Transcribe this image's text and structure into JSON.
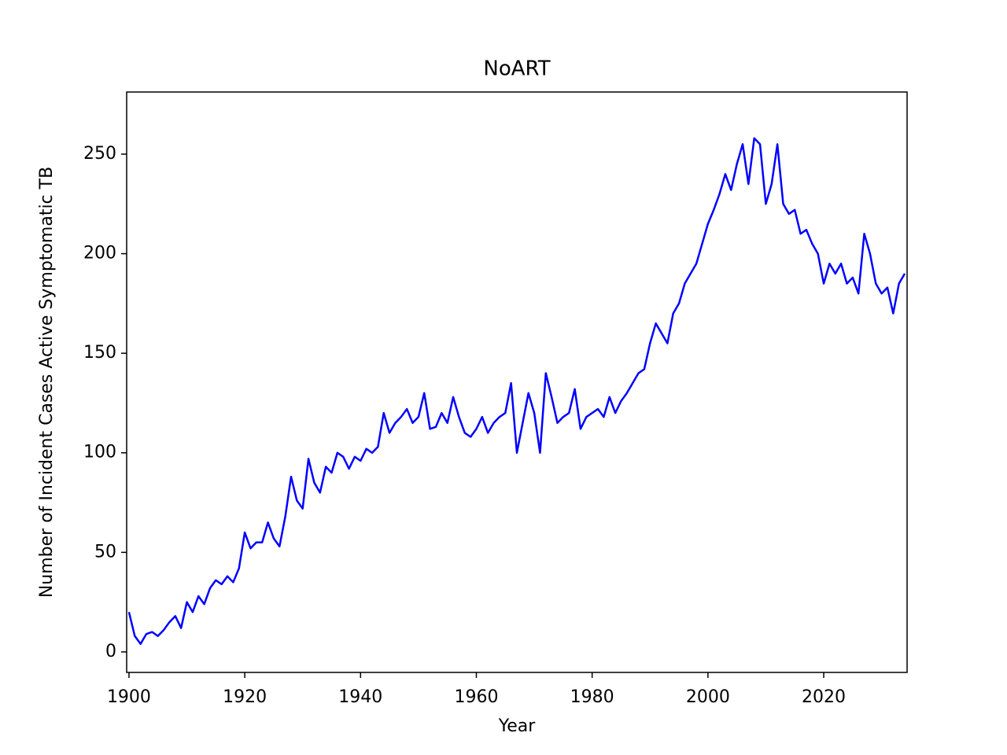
{
  "chart_data": {
    "type": "line",
    "title": "NoART",
    "x_label": "Year",
    "y_label": "Number of Incident Cases Active Symptomatic TB",
    "x": [
      1900,
      1901,
      1902,
      1903,
      1904,
      1905,
      1906,
      1907,
      1908,
      1909,
      1910,
      1911,
      1912,
      1913,
      1914,
      1915,
      1916,
      1917,
      1918,
      1919,
      1920,
      1921,
      1922,
      1923,
      1924,
      1925,
      1926,
      1927,
      1928,
      1929,
      1930,
      1931,
      1932,
      1933,
      1934,
      1935,
      1936,
      1937,
      1938,
      1939,
      1940,
      1941,
      1942,
      1943,
      1944,
      1945,
      1946,
      1947,
      1948,
      1949,
      1950,
      1951,
      1952,
      1953,
      1954,
      1955,
      1956,
      1957,
      1958,
      1959,
      1960,
      1961,
      1962,
      1963,
      1964,
      1965,
      1966,
      1967,
      1968,
      1969,
      1970,
      1971,
      1972,
      1973,
      1974,
      1975,
      1976,
      1977,
      1978,
      1979,
      1980,
      1981,
      1982,
      1983,
      1984,
      1985,
      1986,
      1987,
      1988,
      1989,
      1990,
      1991,
      1992,
      1993,
      1994,
      1995,
      1996,
      1997,
      1998,
      1999,
      2000,
      2001,
      2002,
      2003,
      2004,
      2005,
      2006,
      2007,
      2008,
      2009,
      2010,
      2011,
      2012,
      2013,
      2014,
      2015,
      2016,
      2017,
      2018,
      2019,
      2020,
      2021,
      2022,
      2023,
      2024,
      2025,
      2026,
      2027,
      2028,
      2029,
      2030,
      2031,
      2032,
      2033,
      2034
    ],
    "series": [
      {
        "name": "NoART",
        "color": "#0000ff",
        "values": [
          20,
          8,
          4,
          9,
          10,
          8,
          11,
          15,
          18,
          12,
          25,
          20,
          28,
          24,
          32,
          36,
          34,
          38,
          35,
          42,
          60,
          52,
          55,
          55,
          65,
          57,
          53,
          68,
          88,
          76,
          72,
          97,
          85,
          80,
          93,
          90,
          100,
          98,
          92,
          98,
          96,
          102,
          100,
          103,
          120,
          110,
          115,
          118,
          122,
          115,
          118,
          130,
          112,
          113,
          120,
          115,
          128,
          118,
          110,
          108,
          112,
          118,
          110,
          115,
          118,
          120,
          135,
          100,
          115,
          130,
          120,
          100,
          140,
          128,
          115,
          118,
          120,
          132,
          112,
          118,
          120,
          122,
          118,
          128,
          120,
          126,
          130,
          135,
          140,
          142,
          155,
          165,
          160,
          155,
          170,
          175,
          185,
          190,
          195,
          205,
          215,
          222,
          230,
          240,
          232,
          245,
          255,
          235,
          258,
          255,
          225,
          235,
          255,
          225,
          220,
          222,
          210,
          212,
          205,
          200,
          185,
          195,
          190,
          195,
          185,
          188,
          180,
          210,
          200,
          185,
          180,
          183,
          170,
          185,
          190
        ]
      }
    ],
    "xlim": [
      1899.6,
      2034.4
    ],
    "ylim": [
      -10.3,
      281.2
    ],
    "xticks": [
      1900,
      1920,
      1940,
      1960,
      1980,
      2000,
      2020
    ],
    "yticks": [
      0,
      50,
      100,
      150,
      200,
      250
    ],
    "grid": false
  }
}
